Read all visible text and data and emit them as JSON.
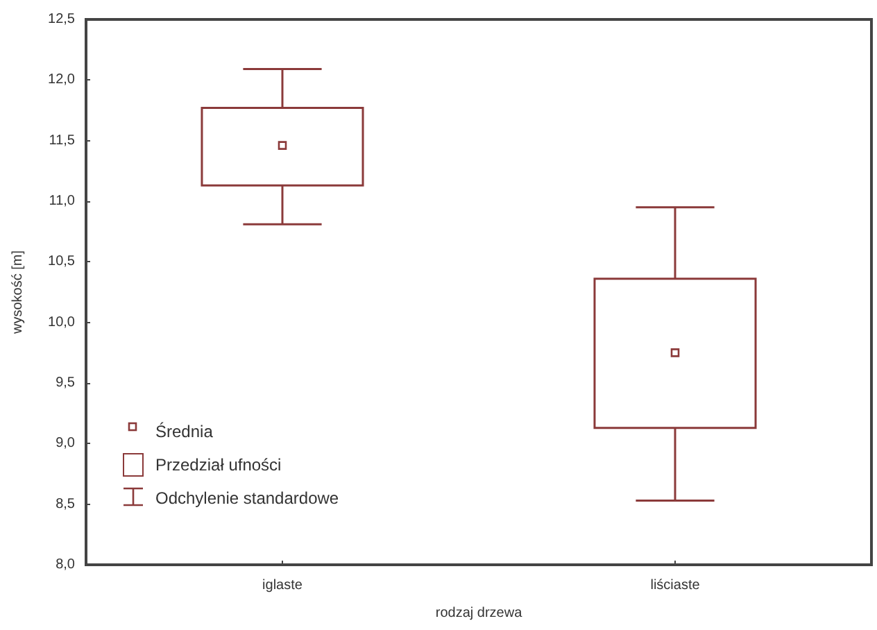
{
  "chart_data": {
    "type": "box",
    "xlabel": "rodzaj drzewa",
    "ylabel": "wysokość [m]",
    "categories": [
      "iglaste",
      "liściaste"
    ],
    "series": [
      {
        "color": "#8b3a3a",
        "boxes": [
          {
            "low": 10.81,
            "q1": 11.13,
            "q3": 11.77,
            "high": 12.09,
            "mean": 11.46
          },
          {
            "low": 8.53,
            "q1": 9.13,
            "q3": 10.36,
            "high": 10.95,
            "mean": 9.75
          }
        ]
      }
    ],
    "ylim": [
      8,
      12.5
    ],
    "yticks": [
      {
        "value": 8,
        "label": "8,0"
      },
      {
        "value": 8.5,
        "label": "8,5"
      },
      {
        "value": 9,
        "label": "9,0"
      },
      {
        "value": 9.5,
        "label": "9,5"
      },
      {
        "value": 10,
        "label": "10,0"
      },
      {
        "value": 10.5,
        "label": "10,5"
      },
      {
        "value": 11,
        "label": "11,0"
      },
      {
        "value": 11.5,
        "label": "11,5"
      },
      {
        "value": 12,
        "label": "12,0"
      },
      {
        "value": 12.5,
        "label": "12,5"
      }
    ],
    "grid": false,
    "annotations": [
      "Średnia",
      "Przedział ufności",
      "Odchylenie standardowe"
    ]
  }
}
